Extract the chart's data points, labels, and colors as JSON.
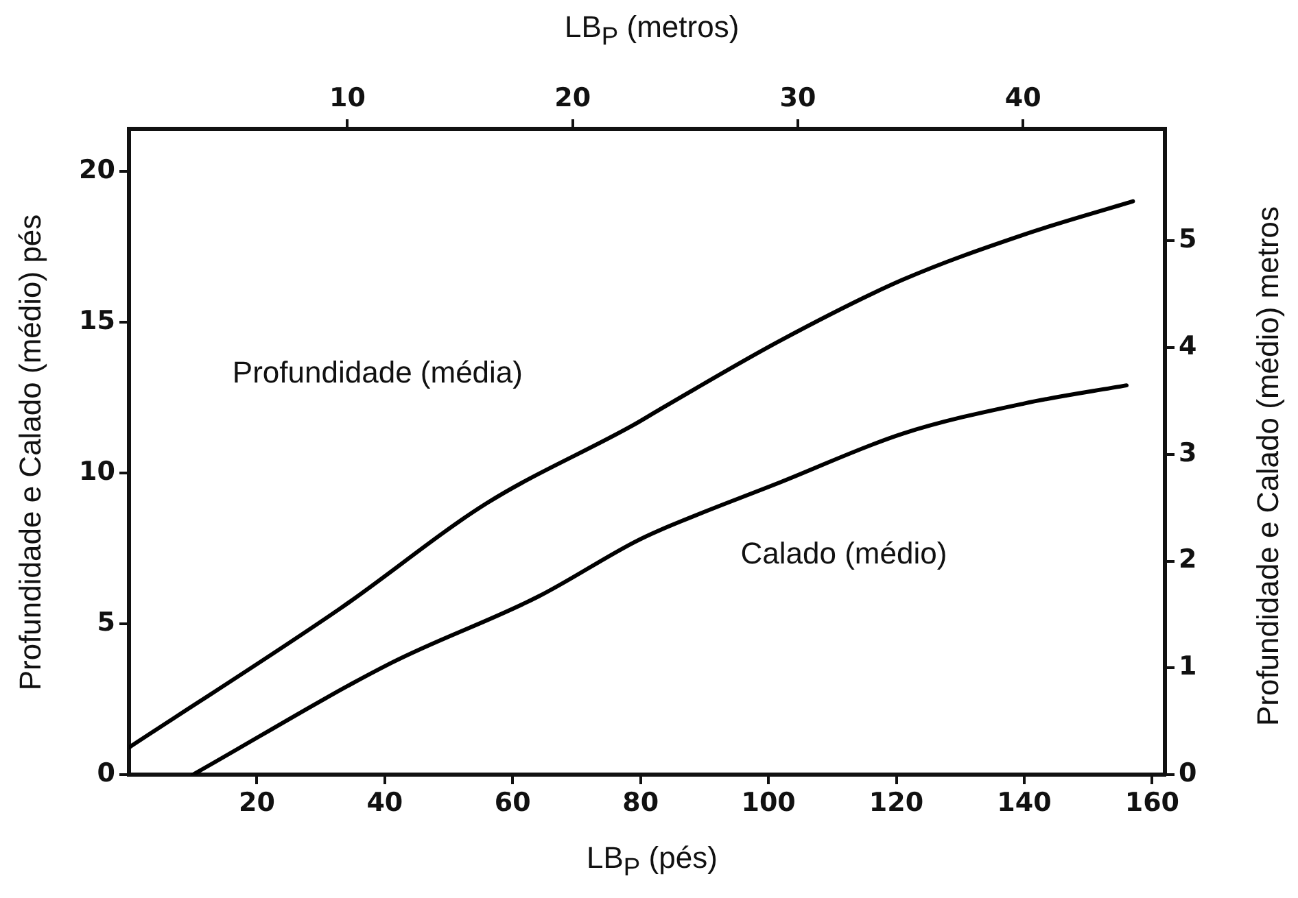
{
  "chart_data": {
    "type": "line",
    "xlabel": "LB$_{P}$ (pés)",
    "x2label": "LB$_{P}$ (metros)",
    "ylabel": "Profundidade e Calado (médio) pés",
    "y2label": "Profundidade e Calado (médio) metros",
    "xlim": [
      0,
      162
    ],
    "xticks": [
      20,
      40,
      60,
      80,
      100,
      120,
      140,
      160
    ],
    "x2lim": [
      0.3,
      46.3
    ],
    "x2ticks": [
      10,
      20,
      30,
      40
    ],
    "ylim": [
      0,
      21.4
    ],
    "yticks": [
      0,
      5,
      10,
      15,
      20
    ],
    "y2lim": [
      0,
      6.05
    ],
    "y2ticks": [
      0,
      1,
      2,
      3,
      4,
      5
    ],
    "grid": false,
    "legend": false,
    "marker": "none",
    "line_style": "solid",
    "series": [
      {
        "name": "Profundidade (média)",
        "color": "#000000",
        "x": [
          0,
          33,
          56,
          79,
          83,
          102,
          121,
          140,
          157
        ],
        "values": [
          0.9,
          5.5,
          9,
          11.6,
          12.1,
          14.4,
          16.4,
          17.9,
          19
        ]
      },
      {
        "name": "Calado (médio)",
        "color": "#000000",
        "x": [
          10,
          41,
          64,
          79,
          83,
          102,
          121,
          140,
          156
        ],
        "values": [
          0,
          3.7,
          5.9,
          7.7,
          8.1,
          9.7,
          11.3,
          12.3,
          12.9
        ]
      }
    ]
  }
}
